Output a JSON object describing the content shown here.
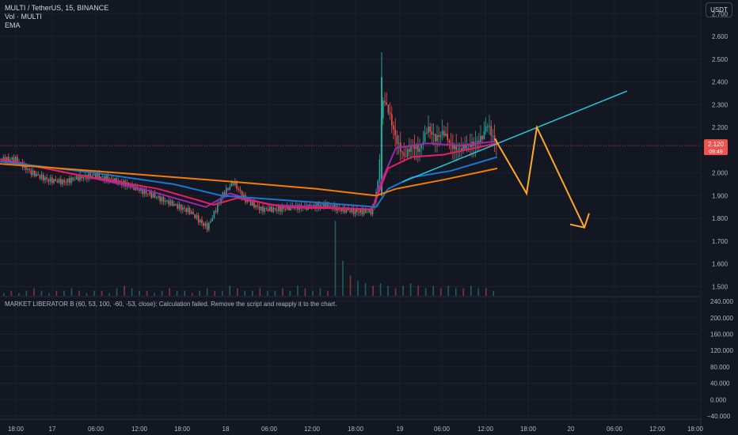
{
  "header": {
    "symbol_line": "MULTI / TetherUS, 15, BINANCE",
    "vol_label": "Vol · MULTI",
    "ema_label": "EMA"
  },
  "currency_button": "USDT",
  "indicator_message": "MARKET LIBERATOR B (60, 53, 100, -60, -53, close): Calculation failed. Remove the script and reapply it to the chart.",
  "colors": {
    "background": "#131722",
    "grid": "#1e222d",
    "up": "#26a69a",
    "down": "#ef5350",
    "ema_fast": "#9c27b0",
    "ema_mid": "#e91e63",
    "ema_slow": "#1976d2",
    "ema_slowest": "#f57c00",
    "trendline": "#26c6da",
    "projection": "#ffa726"
  },
  "chart_data": [
    {
      "type": "candlestick",
      "title": "MULTI / TetherUS, 15, BINANCE",
      "y_ticks": [
        "2.700",
        "2.600",
        "2.500",
        "2.400",
        "2.300",
        "2.200",
        "2.000",
        "1.900",
        "1.800",
        "1.700",
        "1.600",
        "1.500"
      ],
      "ylim": [
        1.46,
        2.76
      ],
      "x_ticks": [
        "18:00",
        "17",
        "06:00",
        "12:00",
        "18:00",
        "18",
        "06:00",
        "12:00",
        "18:00",
        "19",
        "06:00",
        "12:00",
        "18:00",
        "20",
        "06:00",
        "12:00",
        "18:00"
      ],
      "last_price": "2.120",
      "countdown": "09:49",
      "price_path": [
        [
          0,
          2.06
        ],
        [
          20,
          2.06
        ],
        [
          40,
          2.0
        ],
        [
          60,
          1.97
        ],
        [
          80,
          1.96
        ],
        [
          100,
          1.98
        ],
        [
          120,
          1.99
        ],
        [
          140,
          1.97
        ],
        [
          160,
          1.95
        ],
        [
          180,
          1.92
        ],
        [
          200,
          1.89
        ],
        [
          220,
          1.86
        ],
        [
          240,
          1.83
        ],
        [
          255,
          1.78
        ],
        [
          262,
          1.76
        ],
        [
          270,
          1.82
        ],
        [
          280,
          1.9
        ],
        [
          295,
          1.96
        ],
        [
          310,
          1.88
        ],
        [
          330,
          1.84
        ],
        [
          350,
          1.84
        ],
        [
          370,
          1.85
        ],
        [
          390,
          1.85
        ],
        [
          410,
          1.86
        ],
        [
          430,
          1.84
        ],
        [
          450,
          1.83
        ],
        [
          470,
          1.83
        ],
        [
          478,
          1.97
        ],
        [
          483,
          2.33
        ],
        [
          490,
          2.28
        ],
        [
          500,
          2.15
        ],
        [
          510,
          2.07
        ],
        [
          520,
          2.12
        ],
        [
          530,
          2.1
        ],
        [
          540,
          2.2
        ],
        [
          550,
          2.15
        ],
        [
          560,
          2.18
        ],
        [
          570,
          2.12
        ],
        [
          580,
          2.1
        ],
        [
          590,
          2.12
        ],
        [
          600,
          2.13
        ],
        [
          610,
          2.16
        ],
        [
          615,
          2.22
        ],
        [
          622,
          2.16
        ],
        [
          628,
          2.12
        ]
      ],
      "emas": [
        {
          "name": "EMA fast",
          "color": "#9c27b0",
          "points": [
            [
              0,
              2.06
            ],
            [
              100,
              1.99
            ],
            [
              180,
              1.93
            ],
            [
              260,
              1.85
            ],
            [
              290,
              1.91
            ],
            [
              340,
              1.86
            ],
            [
              470,
              1.84
            ],
            [
              480,
              1.95
            ],
            [
              500,
              2.11
            ],
            [
              540,
              2.13
            ],
            [
              580,
              2.12
            ],
            [
              628,
              2.14
            ]
          ]
        },
        {
          "name": "EMA mid",
          "color": "#e91e63",
          "points": [
            [
              0,
              2.06
            ],
            [
              100,
              1.99
            ],
            [
              200,
              1.93
            ],
            [
              270,
              1.86
            ],
            [
              300,
              1.89
            ],
            [
              360,
              1.85
            ],
            [
              470,
              1.84
            ],
            [
              490,
              2.02
            ],
            [
              520,
              2.07
            ],
            [
              560,
              2.08
            ],
            [
              600,
              2.11
            ],
            [
              628,
              2.13
            ]
          ]
        },
        {
          "name": "EMA slow",
          "color": "#1976d2",
          "points": [
            [
              0,
              2.05
            ],
            [
              120,
              2.0
            ],
            [
              220,
              1.95
            ],
            [
              280,
              1.9
            ],
            [
              400,
              1.87
            ],
            [
              475,
              1.85
            ],
            [
              490,
              1.93
            ],
            [
              520,
              1.98
            ],
            [
              570,
              2.01
            ],
            [
              628,
              2.07
            ]
          ]
        },
        {
          "name": "EMA slowest",
          "color": "#f57c00",
          "points": [
            [
              0,
              2.04
            ],
            [
              150,
              2.0
            ],
            [
              300,
              1.96
            ],
            [
              400,
              1.93
            ],
            [
              475,
              1.9
            ],
            [
              500,
              1.93
            ],
            [
              560,
              1.97
            ],
            [
              628,
              2.02
            ]
          ]
        }
      ],
      "trendline": {
        "from": [
          508,
          1.96
        ],
        "to": [
          792,
          2.36
        ]
      },
      "projection": [
        [
          625,
          2.15
        ],
        [
          665,
          1.91
        ],
        [
          678,
          2.2
        ],
        [
          738,
          1.76
        ]
      ]
    },
    {
      "type": "bar",
      "title": "Volume",
      "series": [
        {
          "values": [
            1,
            2,
            1,
            2,
            3,
            2,
            1,
            2,
            2,
            3,
            2,
            1,
            2,
            2,
            1,
            3,
            4,
            3,
            2,
            2,
            1,
            2,
            3,
            2,
            2,
            1,
            2,
            3,
            2,
            2,
            4,
            3,
            2,
            2,
            3,
            2,
            2,
            3,
            2,
            4,
            3,
            2,
            3,
            2,
            30,
            14,
            8,
            6,
            5,
            4,
            5,
            4,
            3,
            4,
            5,
            4,
            3,
            4,
            3,
            4,
            3,
            3,
            4,
            3,
            3,
            2
          ]
        }
      ]
    },
    {
      "type": "line",
      "title": "MARKET LIBERATOR B",
      "y_ticks": [
        "240.000",
        "200.000",
        "160.000",
        "120.000",
        "80.000",
        "40.000",
        "0.000",
        "−40.000"
      ],
      "ylim": [
        -44,
        250
      ]
    }
  ]
}
